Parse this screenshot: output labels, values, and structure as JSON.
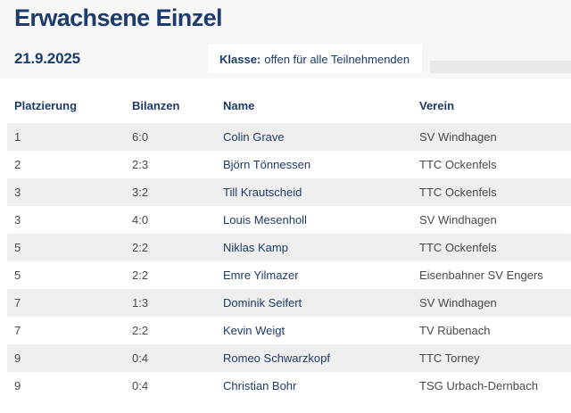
{
  "colors": {
    "navy": "#1d3c6b",
    "text_slate": "#46494f",
    "header_bg": "#f7f7f8",
    "row_alt_bg": "#efeff0",
    "strip_bg": "#e9e9ea",
    "white": "#ffffff"
  },
  "header": {
    "title": "Erwachsene Einzel",
    "date": "21.9.2025",
    "klasse_label": "Klasse:",
    "klasse_value": "offen für alle Teilnehmenden"
  },
  "table": {
    "columns": [
      "Platzierung",
      "Bilanzen",
      "Name",
      "Verein"
    ],
    "rows": [
      {
        "platzierung": "1",
        "bilanzen": "6:0",
        "name": "Colin Grave",
        "verein": "SV Windhagen"
      },
      {
        "platzierung": "2",
        "bilanzen": "2:3",
        "name": "Björn Tönnessen",
        "verein": "TTC Ockenfels"
      },
      {
        "platzierung": "3",
        "bilanzen": "3:2",
        "name": "Till Krautscheid",
        "verein": "TTC Ockenfels"
      },
      {
        "platzierung": "3",
        "bilanzen": "4:0",
        "name": "Louis Mesenholl",
        "verein": "SV Windhagen"
      },
      {
        "platzierung": "5",
        "bilanzen": "2:2",
        "name": "Niklas Kamp",
        "verein": "TTC Ockenfels"
      },
      {
        "platzierung": "5",
        "bilanzen": "2:2",
        "name": "Emre Yilmazer",
        "verein": "Eisenbahner SV Engers"
      },
      {
        "platzierung": "7",
        "bilanzen": "1:3",
        "name": "Dominik Seifert",
        "verein": "SV Windhagen"
      },
      {
        "platzierung": "7",
        "bilanzen": "2:2",
        "name": "Kevin Weigt",
        "verein": "TV Rübenach"
      },
      {
        "platzierung": "9",
        "bilanzen": "0:4",
        "name": "Romeo Schwarzkopf",
        "verein": "TTC Torney"
      },
      {
        "platzierung": "9",
        "bilanzen": "0:4",
        "name": "Christian Bohr",
        "verein": "TSG Urbach-Dernbach"
      }
    ]
  }
}
